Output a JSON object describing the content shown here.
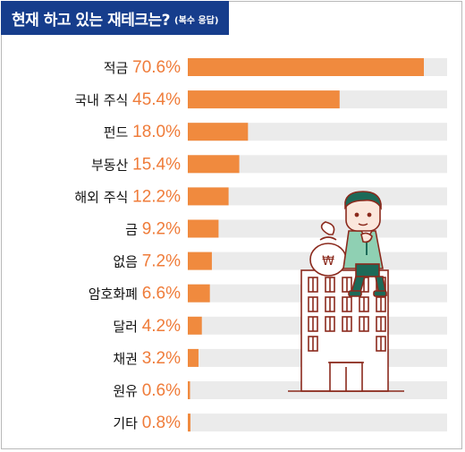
{
  "title": {
    "main": "현재 하고 있는 재테크는?",
    "sub": "(복수 응답)"
  },
  "colors": {
    "title_bg": "#163d8c",
    "bar": "#f08a3e",
    "track": "#ebebeb",
    "value_text": "#ef7c3a",
    "illustration_line": "#8b2a1d",
    "shirt": "#8fd0b3",
    "skin": "#fbe7dc"
  },
  "illustration": {
    "description_icons": [
      "office-building-icon",
      "businessman-icon",
      "money-bag-icon"
    ]
  },
  "chart_data": {
    "type": "bar",
    "orientation": "horizontal",
    "title": "현재 하고 있는 재테크는?",
    "subtitle": "(복수 응답)",
    "categories": [
      "적금",
      "국내 주식",
      "펀드",
      "부동산",
      "해외 주식",
      "금",
      "없음",
      "암호화폐",
      "달러",
      "채권",
      "원유",
      "기타"
    ],
    "values": [
      70.6,
      45.4,
      18.0,
      15.4,
      12.2,
      9.2,
      7.2,
      6.6,
      4.2,
      3.2,
      0.6,
      0.8
    ],
    "value_labels": [
      "70.6%",
      "45.4%",
      "18.0%",
      "15.4%",
      "12.2%",
      "9.2%",
      "7.2%",
      "6.6%",
      "4.2%",
      "3.2%",
      "0.6%",
      "0.8%"
    ],
    "unit": "%",
    "xlim": [
      0,
      80
    ],
    "grid": false,
    "legend": "none"
  }
}
